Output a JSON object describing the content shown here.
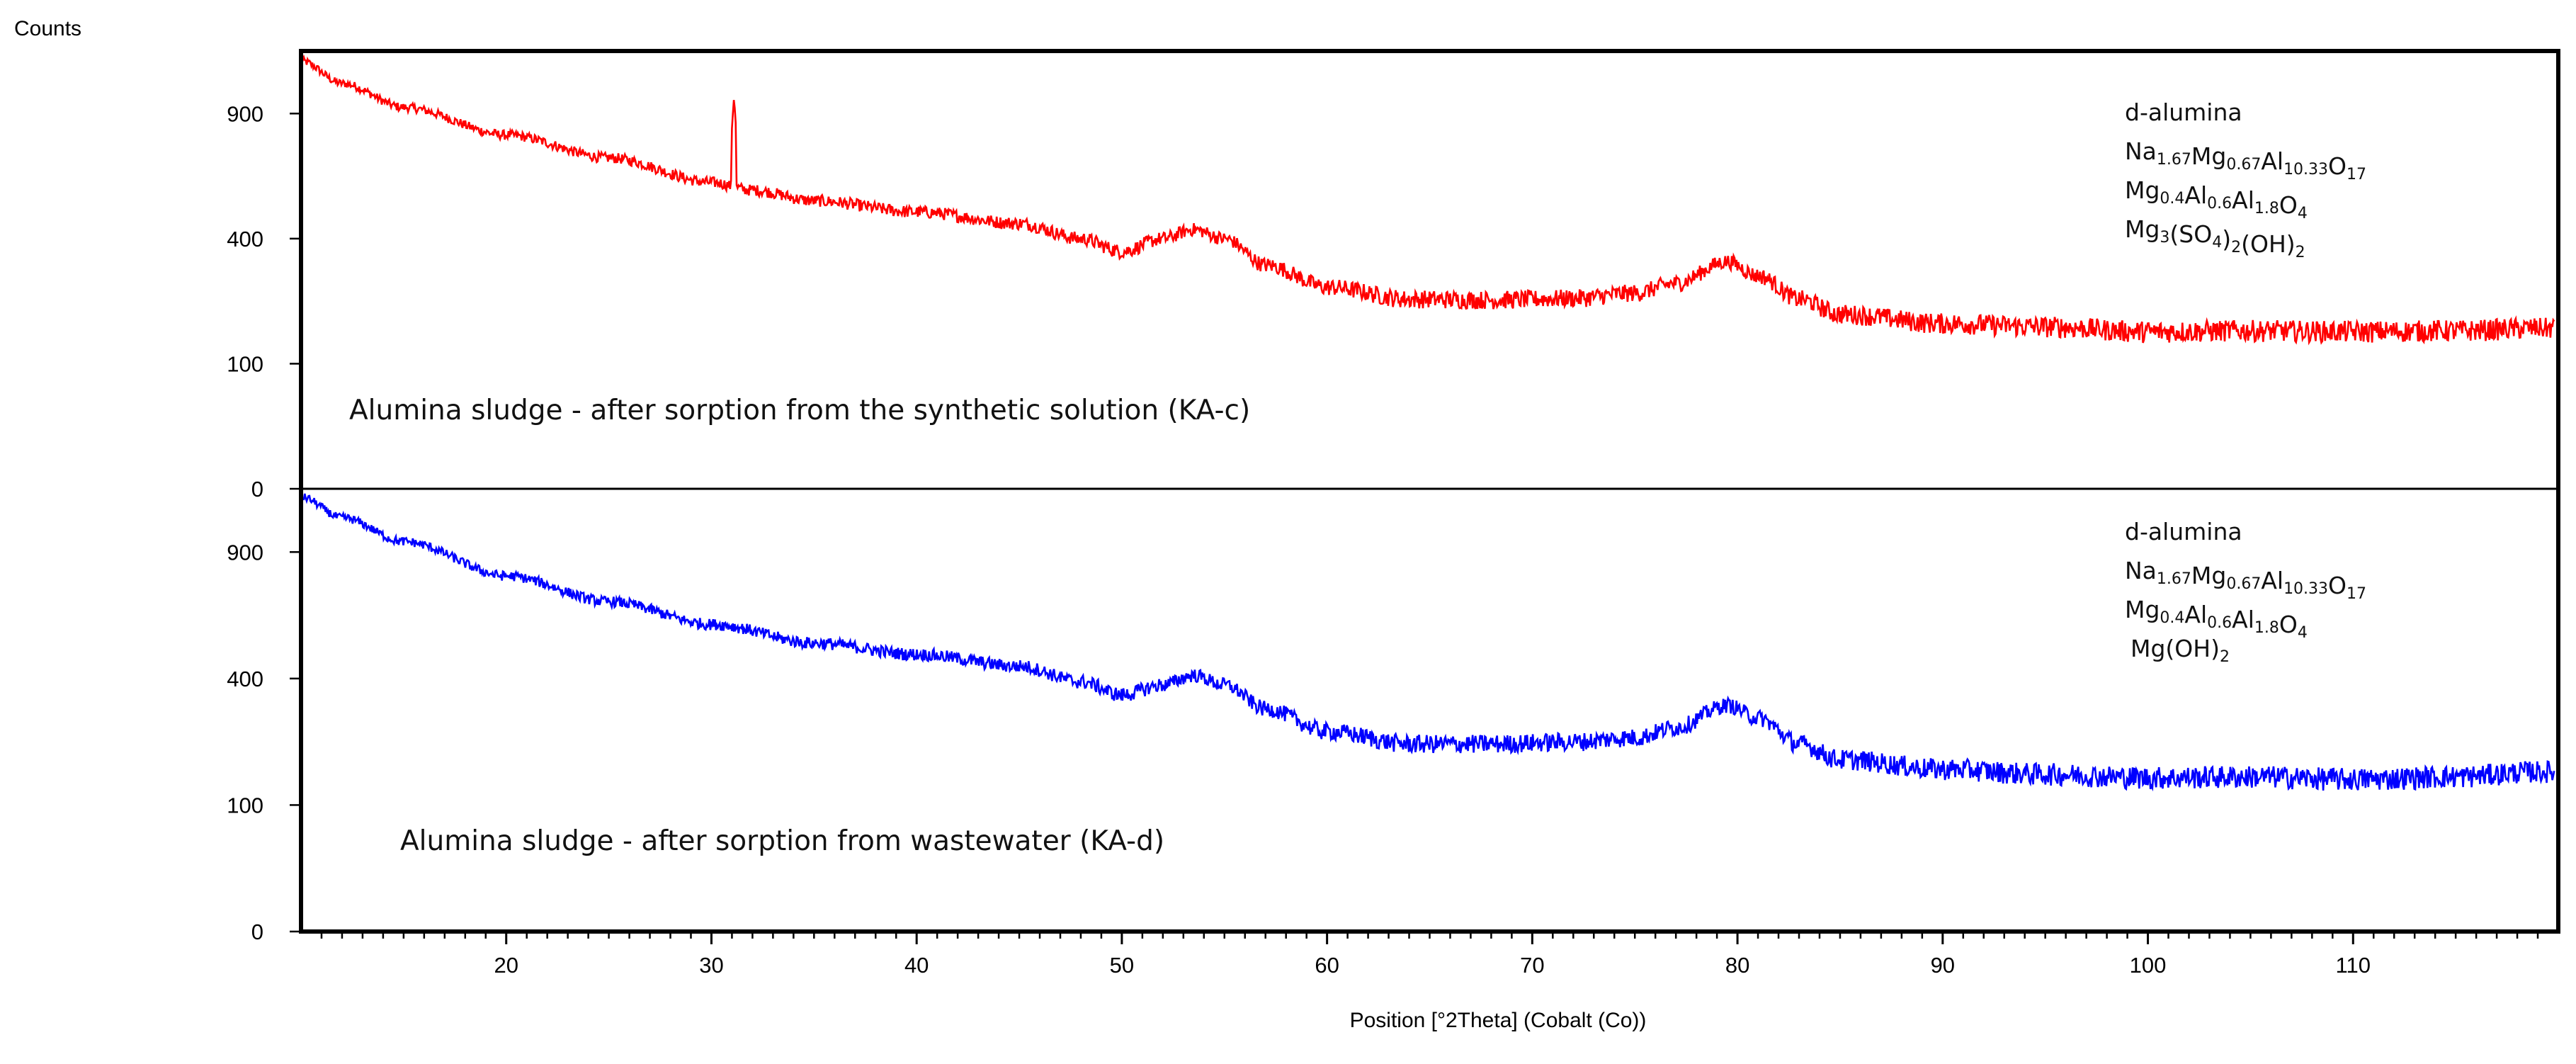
{
  "chart_data": {
    "type": "line",
    "ylabel": "Counts",
    "xlabel": "Position [°2Theta] (Cobalt (Co))",
    "xlim": [
      10,
      120
    ],
    "x_ticks": [
      20,
      30,
      40,
      50,
      60,
      70,
      80,
      90,
      100,
      110
    ],
    "x_tick_labels": [
      "20",
      "30",
      "40",
      "50",
      "60",
      "70",
      "80",
      "90",
      "100",
      "110"
    ],
    "y_ticks": [
      0,
      100,
      400,
      900
    ],
    "y_tick_labels": [
      "0",
      "100",
      "400",
      "900"
    ],
    "y_scale": "sqrt",
    "panels": [
      {
        "name": "KA-c",
        "color": "#ff0000",
        "caption": "Alumina sludge - after sorption from the synthetic solution (KA-c)",
        "phases": [
          {
            "main": "d-alumina",
            "parts": [
              {
                "t": "d-alumina",
                "sub": false
              }
            ]
          },
          {
            "main": "Na1.67Mg0.67Al10.33O17",
            "parts": [
              {
                "t": "Na",
                "sub": false
              },
              {
                "t": "1.67",
                "sub": true
              },
              {
                "t": "Mg",
                "sub": false
              },
              {
                "t": "0.67",
                "sub": true
              },
              {
                "t": "Al",
                "sub": false
              },
              {
                "t": "10.33",
                "sub": true
              },
              {
                "t": "O",
                "sub": false
              },
              {
                "t": "17",
                "sub": true
              }
            ]
          },
          {
            "main": "Mg0.4Al0.6Al1.8O4",
            "parts": [
              {
                "t": "Mg",
                "sub": false
              },
              {
                "t": "0.4",
                "sub": true
              },
              {
                "t": "Al",
                "sub": false
              },
              {
                "t": "0.6",
                "sub": true
              },
              {
                "t": "Al",
                "sub": false
              },
              {
                "t": "1.8",
                "sub": true
              },
              {
                "t": "O",
                "sub": false
              },
              {
                "t": "4",
                "sub": true
              }
            ]
          },
          {
            "main": "Mg3(SO4)2(OH)2",
            "parts": [
              {
                "t": "Mg",
                "sub": false
              },
              {
                "t": "3",
                "sub": true
              },
              {
                "t": "(SO",
                "sub": false
              },
              {
                "t": "4",
                "sub": true
              },
              {
                "t": ")",
                "sub": false
              },
              {
                "t": "2",
                "sub": true
              },
              {
                "t": "(OH)",
                "sub": false
              },
              {
                "t": "2",
                "sub": true
              }
            ]
          }
        ],
        "baseline_points": [
          [
            10,
            1170
          ],
          [
            12,
            1050
          ],
          [
            15,
            930
          ],
          [
            20,
            800
          ],
          [
            25,
            700
          ],
          [
            30,
            600
          ],
          [
            32,
            570
          ],
          [
            35,
            530
          ],
          [
            40,
            490
          ],
          [
            45,
            450
          ],
          [
            48,
            400
          ],
          [
            50,
            360
          ],
          [
            52,
            400
          ],
          [
            53.5,
            430
          ],
          [
            55,
            400
          ],
          [
            57,
            320
          ],
          [
            60,
            260
          ],
          [
            64,
            230
          ],
          [
            68,
            228
          ],
          [
            72,
            232
          ],
          [
            75,
            245
          ],
          [
            77,
            270
          ],
          [
            79.5,
            330
          ],
          [
            81,
            290
          ],
          [
            83,
            230
          ],
          [
            85,
            195
          ],
          [
            90,
            175
          ],
          [
            95,
            168
          ],
          [
            100,
            158
          ],
          [
            105,
            160
          ],
          [
            110,
            158
          ],
          [
            115,
            160
          ],
          [
            119,
            165
          ]
        ],
        "sharp_peak": {
          "x": 31.1,
          "y": 980
        },
        "noise": 22
      },
      {
        "name": "KA-d",
        "color": "#0000ff",
        "caption": "Alumina sludge - after sorption from wastewater (KA-d)",
        "phases": [
          {
            "main": "d-alumina",
            "parts": [
              {
                "t": "d-alumina",
                "sub": false
              }
            ]
          },
          {
            "main": "Na1.67Mg0.67Al10.33O17",
            "parts": [
              {
                "t": "Na",
                "sub": false
              },
              {
                "t": "1.67",
                "sub": true
              },
              {
                "t": "Mg",
                "sub": false
              },
              {
                "t": "0.67",
                "sub": true
              },
              {
                "t": "Al",
                "sub": false
              },
              {
                "t": "10.33",
                "sub": true
              },
              {
                "t": "O",
                "sub": false
              },
              {
                "t": "17",
                "sub": true
              }
            ]
          },
          {
            "main": "Mg0.4Al0.6Al1.8O4",
            "parts": [
              {
                "t": "Mg",
                "sub": false
              },
              {
                "t": "0.4",
                "sub": true
              },
              {
                "t": "Al",
                "sub": false
              },
              {
                "t": "0.6",
                "sub": true
              },
              {
                "t": "Al",
                "sub": false
              },
              {
                "t": "1.8",
                "sub": true
              },
              {
                "t": "O",
                "sub": false
              },
              {
                "t": "4",
                "sub": true
              }
            ]
          },
          {
            "main": "Mg(OH)2",
            "parts": [
              {
                "t": "Mg(OH)",
                "sub": false
              },
              {
                "t": "2",
                "sub": true
              }
            ]
          }
        ],
        "baseline_points": [
          [
            10,
            1180
          ],
          [
            12,
            1070
          ],
          [
            15,
            950
          ],
          [
            20,
            790
          ],
          [
            25,
            680
          ],
          [
            30,
            590
          ],
          [
            35,
            520
          ],
          [
            40,
            480
          ],
          [
            45,
            440
          ],
          [
            48,
            390
          ],
          [
            50,
            350
          ],
          [
            52,
            380
          ],
          [
            53.5,
            410
          ],
          [
            55,
            380
          ],
          [
            57,
            310
          ],
          [
            60,
            250
          ],
          [
            64,
            220
          ],
          [
            68,
            220
          ],
          [
            72,
            225
          ],
          [
            75,
            235
          ],
          [
            77,
            260
          ],
          [
            79.5,
            320
          ],
          [
            81,
            285
          ],
          [
            83,
            220
          ],
          [
            85,
            185
          ],
          [
            90,
            165
          ],
          [
            95,
            155
          ],
          [
            100,
            148
          ],
          [
            105,
            150
          ],
          [
            110,
            145
          ],
          [
            115,
            150
          ],
          [
            119,
            160
          ]
        ],
        "noise": 22
      }
    ]
  }
}
